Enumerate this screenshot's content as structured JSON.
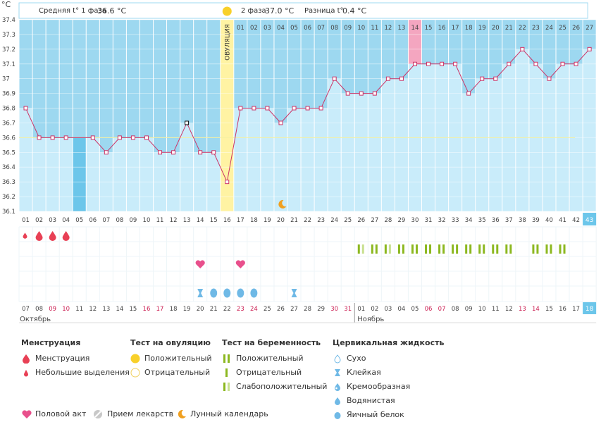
{
  "header": {
    "unit_label": "°C",
    "phase1_label": "Средняя t° 1 фаза",
    "phase1_value": "36.6 °C",
    "phase2_label": "2 фаза",
    "phase2_value": "37.0 °C",
    "diff_label": "Разница t°",
    "diff_value": "0.4 °C"
  },
  "ovulation_label": "ОВУЛЯЦИЯ",
  "colors": {
    "blue_band": "#9dd8f0",
    "bar_fill": "#c9ecfa",
    "line": "#cc3366",
    "ovulation": "#fff3a3",
    "pink": "#f4a6c0",
    "dark_cell": "#6cc6ea",
    "green": "#8cb820",
    "drop": "#e84055",
    "heart": "#e8508c",
    "cervical": "#6fb9e6",
    "moon": "#f0a020"
  },
  "chart_data": {
    "type": "line",
    "title": "",
    "ylabel": "°C",
    "ylim": [
      36.1,
      37.4
    ],
    "yticks": [
      "36.1",
      "36.2",
      "36.3",
      "36.4",
      "36.5",
      "36.6",
      "36.7",
      "36.8",
      "36.9",
      "37",
      "37.1",
      "37.2",
      "37.3",
      "37.4"
    ],
    "cycle_days": [
      "01",
      "02",
      "03",
      "04",
      "05",
      "06",
      "07",
      "08",
      "09",
      "10",
      "11",
      "12",
      "13",
      "14",
      "15",
      "16",
      "17",
      "18",
      "19",
      "20",
      "21",
      "22",
      "23",
      "24",
      "25",
      "26",
      "27",
      "28",
      "29",
      "30",
      "31",
      "32",
      "33",
      "34",
      "35",
      "36",
      "37",
      "38",
      "39",
      "40",
      "41",
      "42",
      "43"
    ],
    "phase2_day_labels": [
      "01",
      "02",
      "03",
      "04",
      "05",
      "06",
      "07",
      "08",
      "09",
      "10",
      "11",
      "12",
      "13",
      "14",
      "15",
      "16",
      "17",
      "18",
      "19",
      "20",
      "21",
      "22",
      "23",
      "24",
      "25",
      "26",
      "27"
    ],
    "temperatures": [
      36.8,
      36.6,
      36.6,
      36.6,
      null,
      36.6,
      36.5,
      36.6,
      36.6,
      36.6,
      36.5,
      36.5,
      36.7,
      36.5,
      36.5,
      36.3,
      36.8,
      36.8,
      36.8,
      36.7,
      36.8,
      36.8,
      36.8,
      37.0,
      36.9,
      36.9,
      36.9,
      37.0,
      37.0,
      37.1,
      37.1,
      37.1,
      37.1,
      36.9,
      37.0,
      37.0,
      37.1,
      37.2,
      37.1,
      37.0,
      37.1,
      37.1,
      37.2
    ],
    "coverline": 36.6,
    "ovulation_day": "16",
    "dates": [
      "07",
      "08",
      "09",
      "10",
      "11",
      "12",
      "13",
      "14",
      "15",
      "16",
      "17",
      "18",
      "19",
      "20",
      "21",
      "22",
      "23",
      "24",
      "25",
      "26",
      "27",
      "28",
      "29",
      "30",
      "31",
      "01",
      "02",
      "03",
      "04",
      "05",
      "06",
      "07",
      "08",
      "09",
      "10",
      "11",
      "12",
      "13",
      "14",
      "15",
      "16",
      "17",
      "18"
    ],
    "red_dates_index": [
      2,
      3,
      9,
      10,
      16,
      17,
      23,
      24,
      30,
      31,
      37,
      38
    ],
    "months": [
      "Октябрь",
      "Ноябрь"
    ],
    "highlight_day": "43",
    "highlight_date": "18"
  },
  "legend": {
    "menstruation": {
      "title": "Менструация",
      "items": [
        "Менструация",
        "Небольшие выделения"
      ]
    },
    "ovulation_test": {
      "title": "Тест на овуляцию",
      "items": [
        "Положительный",
        "Отрицательный"
      ]
    },
    "pregnancy_test": {
      "title": "Тест на беременность",
      "items": [
        "Положительный",
        "Отрицательный",
        "Слабоположительный"
      ]
    },
    "cervical": {
      "title": "Цервикальная жидкость",
      "items": [
        "Сухо",
        "Клейкая",
        "Кремообразная",
        "Водянистая",
        "Яичный белок"
      ]
    },
    "bottom": [
      "Половой акт",
      "Прием лекарств",
      "Лунный календарь"
    ]
  }
}
